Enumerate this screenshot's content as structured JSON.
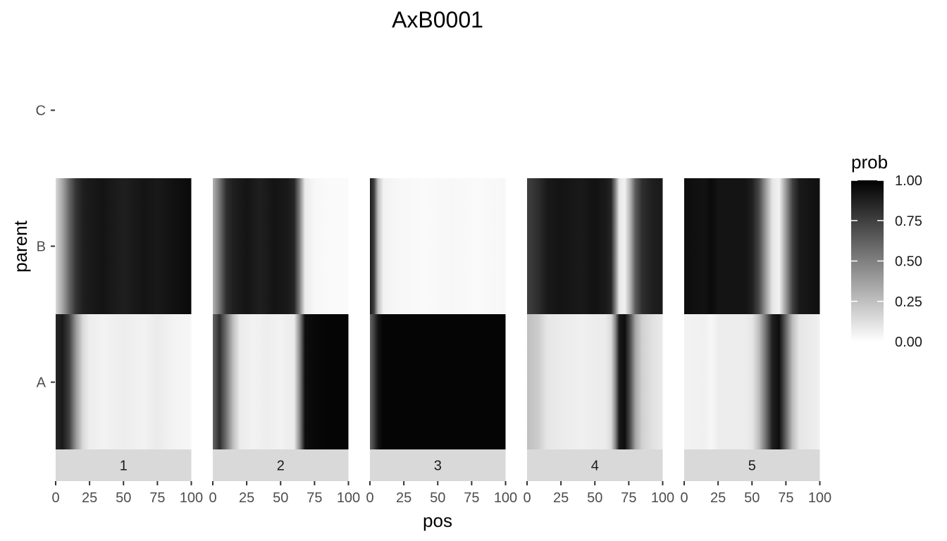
{
  "chart_data": {
    "type": "heatmap",
    "title": "AxB0001",
    "xlabel": "pos",
    "ylabel": "parent",
    "y_categories": [
      "A",
      "B",
      "C"
    ],
    "x_ticks": [
      0,
      25,
      50,
      75,
      100
    ],
    "x_tick_labels": [
      "0",
      "25",
      "50",
      "75",
      "100"
    ],
    "xlim": [
      0,
      100
    ],
    "facets": [
      {
        "label": "1",
        "series": [
          {
            "parent": "A",
            "stops": [
              [
                0,
                0.85
              ],
              [
                5,
                0.9
              ],
              [
                10,
                0.75
              ],
              [
                15,
                0.4
              ],
              [
                20,
                0.15
              ],
              [
                25,
                0.07
              ],
              [
                35,
                0.05
              ],
              [
                50,
                0.07
              ],
              [
                65,
                0.05
              ],
              [
                75,
                0.08
              ],
              [
                85,
                0.05
              ],
              [
                100,
                0.03
              ]
            ]
          },
          {
            "parent": "B",
            "stops": [
              [
                0,
                0.15
              ],
              [
                5,
                0.35
              ],
              [
                10,
                0.6
              ],
              [
                15,
                0.8
              ],
              [
                20,
                0.88
              ],
              [
                25,
                0.9
              ],
              [
                35,
                0.92
              ],
              [
                50,
                0.88
              ],
              [
                65,
                0.92
              ],
              [
                75,
                0.9
              ],
              [
                85,
                0.93
              ],
              [
                100,
                0.96
              ]
            ]
          }
        ]
      },
      {
        "label": "2",
        "series": [
          {
            "parent": "A",
            "stops": [
              [
                0,
                0.6
              ],
              [
                5,
                0.82
              ],
              [
                10,
                0.55
              ],
              [
                15,
                0.25
              ],
              [
                20,
                0.08
              ],
              [
                30,
                0.05
              ],
              [
                40,
                0.07
              ],
              [
                50,
                0.05
              ],
              [
                60,
                0.08
              ],
              [
                64,
                0.45
              ],
              [
                68,
                0.95
              ],
              [
                75,
                0.97
              ],
              [
                85,
                0.98
              ],
              [
                100,
                0.98
              ]
            ]
          },
          {
            "parent": "B",
            "stops": [
              [
                0,
                0.3
              ],
              [
                5,
                0.55
              ],
              [
                10,
                0.82
              ],
              [
                15,
                0.88
              ],
              [
                25,
                0.92
              ],
              [
                35,
                0.88
              ],
              [
                45,
                0.92
              ],
              [
                55,
                0.9
              ],
              [
                60,
                0.85
              ],
              [
                64,
                0.5
              ],
              [
                68,
                0.08
              ],
              [
                75,
                0.03
              ],
              [
                85,
                0.02
              ],
              [
                100,
                0.02
              ]
            ]
          }
        ]
      },
      {
        "label": "3",
        "series": [
          {
            "parent": "A",
            "stops": [
              [
                0,
                0.6
              ],
              [
                3,
                0.75
              ],
              [
                6,
                0.92
              ],
              [
                10,
                0.98
              ],
              [
                50,
                0.98
              ],
              [
                100,
                0.98
              ]
            ]
          },
          {
            "parent": "B",
            "stops": [
              [
                0,
                0.9
              ],
              [
                3,
                0.75
              ],
              [
                6,
                0.25
              ],
              [
                10,
                0.05
              ],
              [
                20,
                0.03
              ],
              [
                40,
                0.02
              ],
              [
                60,
                0.03
              ],
              [
                80,
                0.02
              ],
              [
                100,
                0.03
              ]
            ]
          }
        ]
      },
      {
        "label": "4",
        "series": [
          {
            "parent": "A",
            "stops": [
              [
                0,
                0.25
              ],
              [
                8,
                0.2
              ],
              [
                15,
                0.1
              ],
              [
                25,
                0.08
              ],
              [
                40,
                0.06
              ],
              [
                50,
                0.07
              ],
              [
                58,
                0.08
              ],
              [
                62,
                0.15
              ],
              [
                65,
                0.45
              ],
              [
                68,
                0.9
              ],
              [
                72,
                0.95
              ],
              [
                76,
                0.7
              ],
              [
                80,
                0.35
              ],
              [
                85,
                0.18
              ],
              [
                92,
                0.12
              ],
              [
                100,
                0.08
              ]
            ]
          },
          {
            "parent": "B",
            "stops": [
              [
                0,
                0.75
              ],
              [
                8,
                0.82
              ],
              [
                15,
                0.9
              ],
              [
                25,
                0.92
              ],
              [
                40,
                0.9
              ],
              [
                50,
                0.93
              ],
              [
                58,
                0.9
              ],
              [
                62,
                0.85
              ],
              [
                65,
                0.5
              ],
              [
                68,
                0.1
              ],
              [
                72,
                0.05
              ],
              [
                76,
                0.3
              ],
              [
                80,
                0.65
              ],
              [
                85,
                0.82
              ],
              [
                92,
                0.88
              ],
              [
                100,
                0.9
              ]
            ]
          }
        ]
      },
      {
        "label": "5",
        "series": [
          {
            "parent": "A",
            "stops": [
              [
                0,
                0.05
              ],
              [
                15,
                0.06
              ],
              [
                20,
                0.03
              ],
              [
                25,
                0.07
              ],
              [
                45,
                0.07
              ],
              [
                50,
                0.1
              ],
              [
                55,
                0.25
              ],
              [
                60,
                0.55
              ],
              [
                65,
                0.88
              ],
              [
                70,
                0.95
              ],
              [
                75,
                0.6
              ],
              [
                80,
                0.25
              ],
              [
                85,
                0.1
              ],
              [
                100,
                0.06
              ]
            ]
          },
          {
            "parent": "B",
            "stops": [
              [
                0,
                0.95
              ],
              [
                15,
                0.93
              ],
              [
                20,
                0.96
              ],
              [
                25,
                0.92
              ],
              [
                45,
                0.92
              ],
              [
                50,
                0.88
              ],
              [
                55,
                0.72
              ],
              [
                60,
                0.4
              ],
              [
                65,
                0.1
              ],
              [
                70,
                0.05
              ],
              [
                75,
                0.4
              ],
              [
                80,
                0.75
              ],
              [
                85,
                0.9
              ],
              [
                100,
                0.94
              ]
            ]
          }
        ]
      }
    ],
    "legend": {
      "title": "prob",
      "placement": "right",
      "ticks": [
        0,
        0.25,
        0.5,
        0.75,
        1
      ],
      "tick_labels": [
        "0.00",
        "0.25",
        "0.50",
        "0.75",
        "1.00"
      ],
      "low_color": "#ffffff",
      "high_color": "#000000"
    },
    "strip_color": "#d9d9d9",
    "grid": false
  }
}
